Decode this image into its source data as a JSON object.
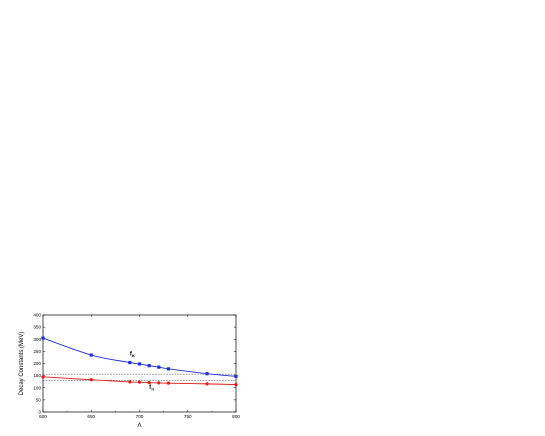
{
  "chart_data": {
    "type": "line",
    "xlabel": "Λ",
    "ylabel": "Decay Constants (MeV)",
    "xlim": [
      600,
      800
    ],
    "ylim": [
      0,
      400
    ],
    "x_ticks": [
      600,
      650,
      700,
      750,
      800
    ],
    "y_ticks": [
      0,
      50,
      100,
      150,
      200,
      250,
      300,
      350,
      400
    ],
    "grid": false,
    "series": [
      {
        "name": "f_K",
        "name_main": "f",
        "name_sub": "K",
        "color": "#1f2fd6",
        "marker": "square",
        "points": [
          {
            "x": 600,
            "y": 305
          },
          {
            "x": 650,
            "y": 235
          },
          {
            "x": 690,
            "y": 204
          },
          {
            "x": 700,
            "y": 198
          },
          {
            "x": 710,
            "y": 191
          },
          {
            "x": 720,
            "y": 185
          },
          {
            "x": 730,
            "y": 178
          },
          {
            "x": 770,
            "y": 158
          },
          {
            "x": 800,
            "y": 147
          }
        ]
      },
      {
        "name": "f_π",
        "name_main": "f",
        "name_sub": "π",
        "color": "#e01818",
        "marker": "circle",
        "points": [
          {
            "x": 600,
            "y": 145
          },
          {
            "x": 650,
            "y": 133
          },
          {
            "x": 690,
            "y": 124
          },
          {
            "x": 700,
            "y": 123
          },
          {
            "x": 710,
            "y": 121
          },
          {
            "x": 720,
            "y": 120
          },
          {
            "x": 730,
            "y": 119
          },
          {
            "x": 770,
            "y": 116
          },
          {
            "x": 800,
            "y": 113
          }
        ]
      }
    ],
    "reference_lines": [
      {
        "y": 156,
        "style": "dashed"
      },
      {
        "y": 131,
        "style": "dashed"
      }
    ]
  }
}
